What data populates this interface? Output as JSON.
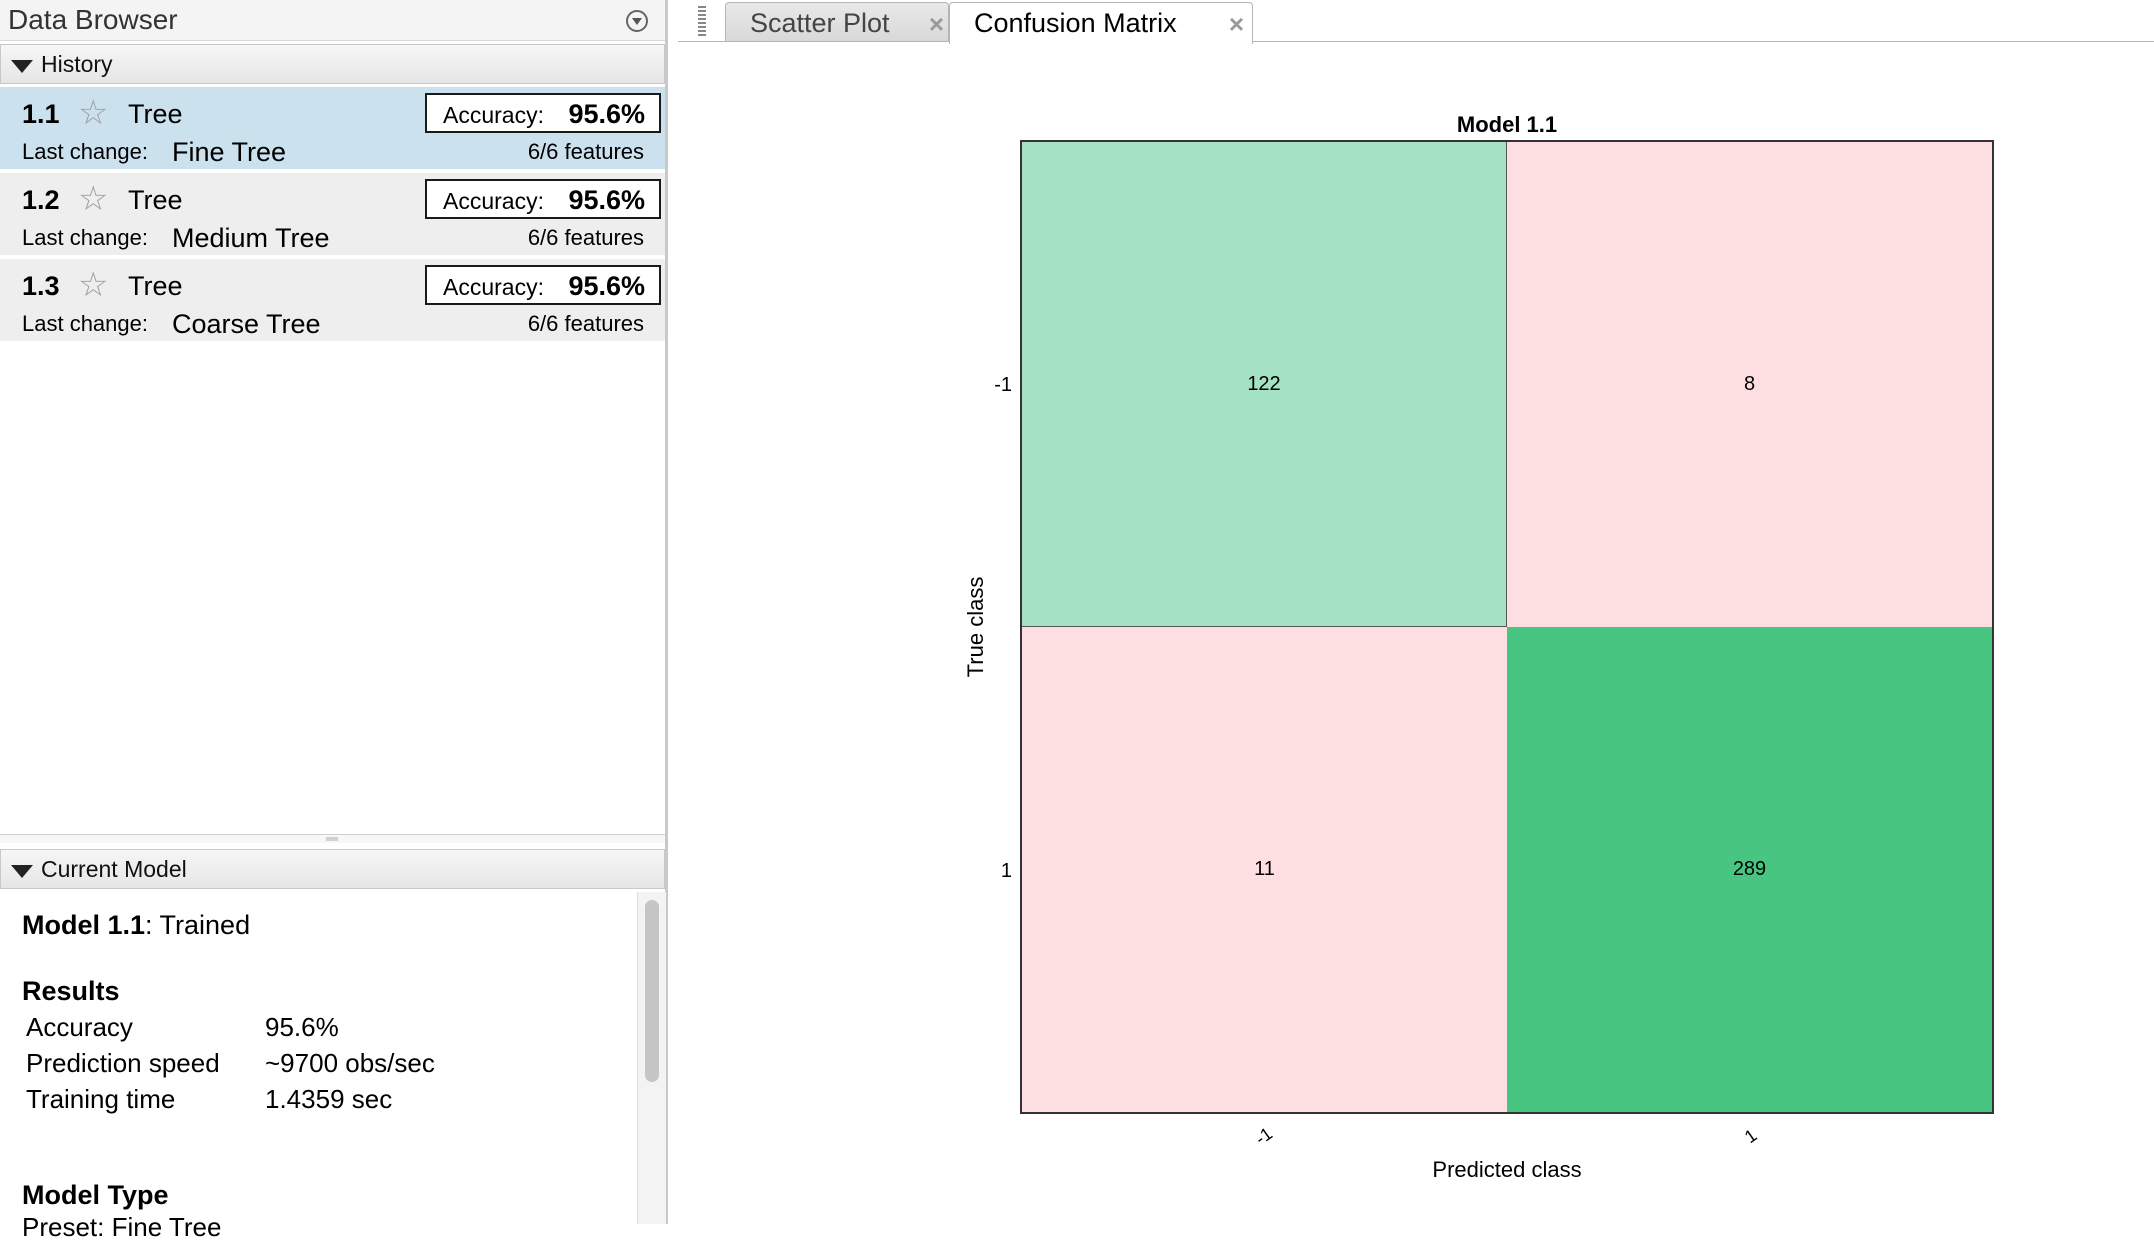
{
  "data_browser": {
    "title": "Data Browser",
    "history_label": "History",
    "models": [
      {
        "number": "1.1",
        "type": "Tree",
        "last_change_label": "Last change:",
        "last_change": "Fine Tree",
        "accuracy_label": "Accuracy:",
        "accuracy": "95.6%",
        "features": "6/6 features",
        "selected": true
      },
      {
        "number": "1.2",
        "type": "Tree",
        "last_change_label": "Last change:",
        "last_change": "Medium Tree",
        "accuracy_label": "Accuracy:",
        "accuracy": "95.6%",
        "features": "6/6 features",
        "selected": false
      },
      {
        "number": "1.3",
        "type": "Tree",
        "last_change_label": "Last change:",
        "last_change": "Coarse Tree",
        "accuracy_label": "Accuracy:",
        "accuracy": "95.6%",
        "features": "6/6 features",
        "selected": false
      }
    ]
  },
  "current_model": {
    "header": "Current Model",
    "name": "Model 1.1",
    "status": ": Trained",
    "results_heading": "Results",
    "results": [
      {
        "label": "Accuracy",
        "value": "95.6%"
      },
      {
        "label": "Prediction speed",
        "value": "~9700 obs/sec"
      },
      {
        "label": "Training time",
        "value": "1.4359 sec"
      }
    ],
    "model_type_heading": "Model Type",
    "model_type_clipped": "Preset: Fine Tree"
  },
  "tabs": [
    {
      "label": "Scatter Plot",
      "active": false
    },
    {
      "label": "Confusion Matrix",
      "active": true
    }
  ],
  "icons": {
    "close": "×",
    "star": "☆",
    "panel_menu": "chevron-down-circle-icon",
    "collapse": "triangle-down-icon"
  },
  "chart_data": {
    "type": "heatmap",
    "title": "Model 1.1",
    "xlabel": "Predicted class",
    "ylabel": "True class",
    "x_categories": [
      "-1",
      "1"
    ],
    "y_categories": [
      "-1",
      "1"
    ],
    "matrix": [
      [
        122,
        8
      ],
      [
        11,
        289
      ]
    ],
    "colors": {
      "diagonal_low": "#a3e3c3",
      "diagonal_high": "#48c681",
      "off_diagonal": "#fddfe1"
    }
  }
}
